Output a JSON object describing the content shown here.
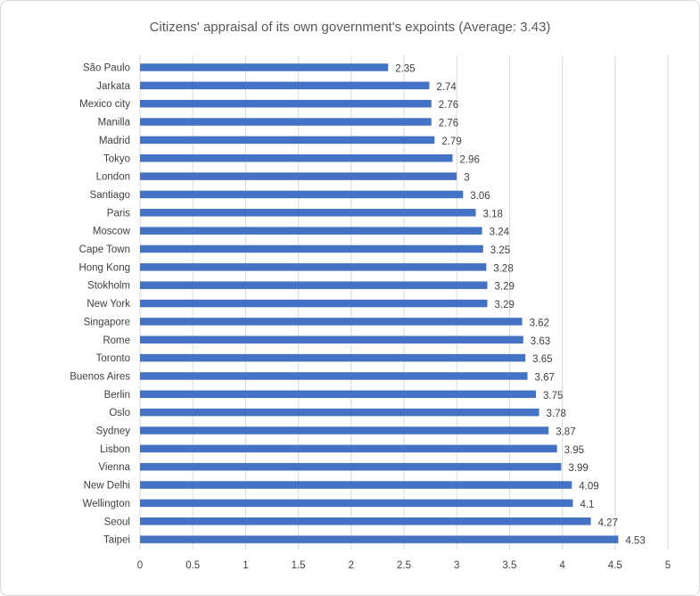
{
  "chart_data": {
    "type": "bar",
    "orientation": "horizontal",
    "title": "Citizens' appraisal of its own government's expoints (Average: 3.43)",
    "categories": [
      "São Paulo",
      "Jarkata",
      "Mexico city",
      "Manilla",
      "Madrid",
      "Tokyo",
      "London",
      "Santiago",
      "Paris",
      "Moscow",
      "Cape Town",
      "Hong Kong",
      "Stokholm",
      "New York",
      "Singapore",
      "Rome",
      "Toronto",
      "Buenos Aires",
      "Berlin",
      "Oslo",
      "Sydney",
      "Lisbon",
      "Vienna",
      "New Delhi",
      "Wellington",
      "Seoul",
      "Taipei"
    ],
    "values": [
      2.35,
      2.74,
      2.76,
      2.76,
      2.79,
      2.96,
      3,
      3.06,
      3.18,
      3.24,
      3.25,
      3.28,
      3.29,
      3.29,
      3.62,
      3.63,
      3.65,
      3.67,
      3.75,
      3.78,
      3.87,
      3.95,
      3.99,
      4.09,
      4.1,
      4.27,
      4.53
    ],
    "value_labels": [
      "2.35",
      "2.74",
      "2.76",
      "2.76",
      "2.79",
      "2.96",
      "3",
      "3.06",
      "3.18",
      "3.24",
      "3.25",
      "3.28",
      "3.29",
      "3.29",
      "3.62",
      "3.63",
      "3.65",
      "3.67",
      "3.75",
      "3.78",
      "3.87",
      "3.95",
      "3.99",
      "4.09",
      "4.1",
      "4.27",
      "4.53"
    ],
    "x_ticks": [
      "0",
      "0.5",
      "1",
      "1.5",
      "2",
      "2.5",
      "3",
      "3.5",
      "4",
      "4.5",
      "5"
    ],
    "xlim": [
      0,
      5
    ],
    "grid": "vertical",
    "legend": "none",
    "bar_color": "#4472c4"
  }
}
